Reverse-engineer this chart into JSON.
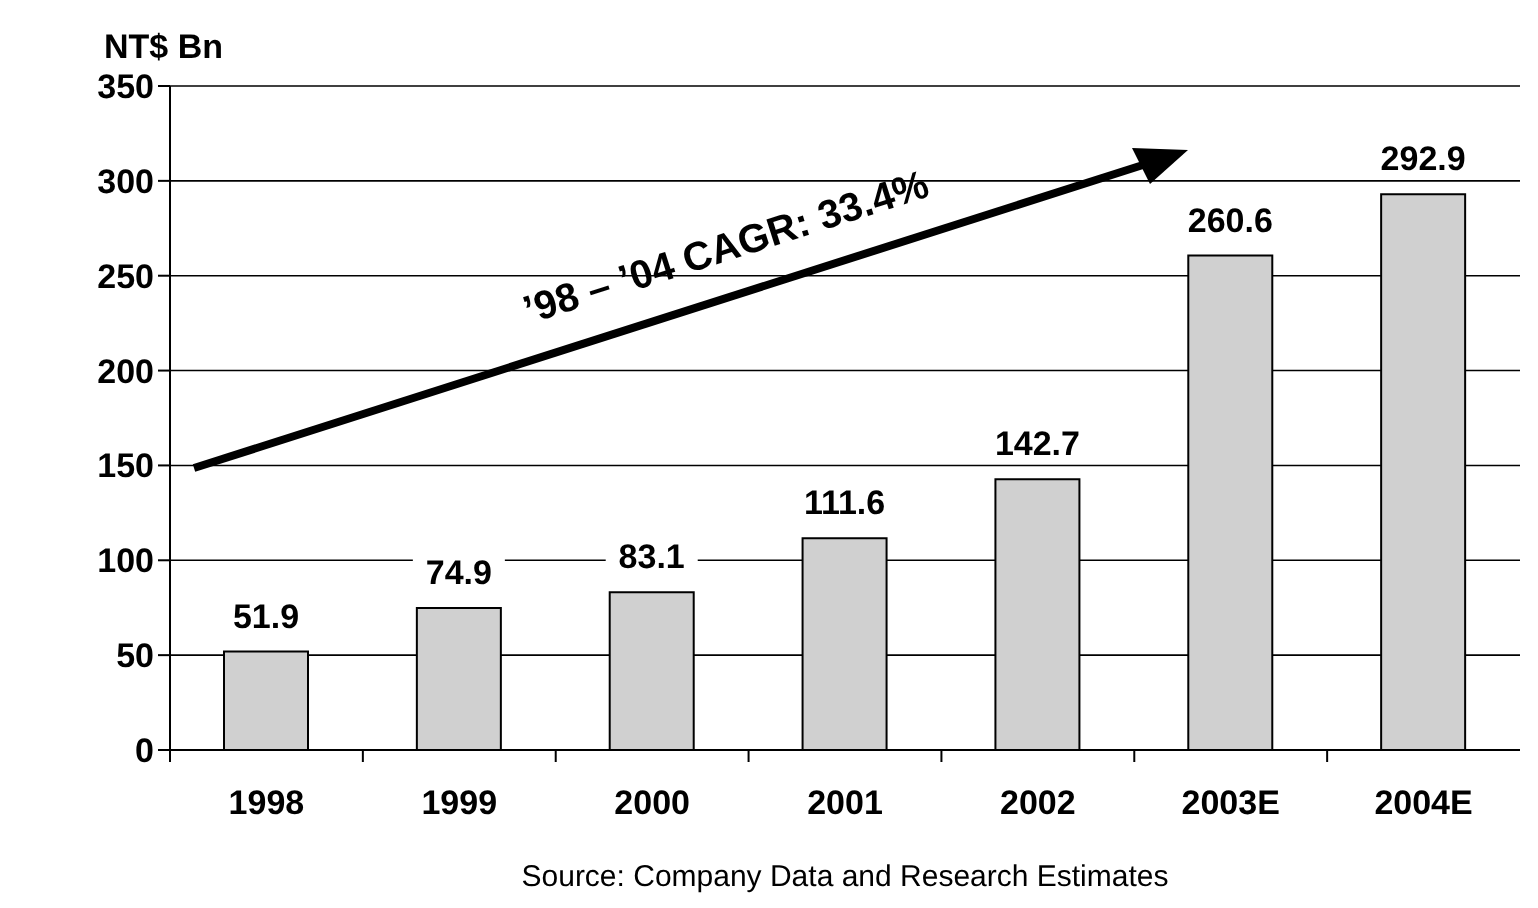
{
  "chart_data": {
    "type": "bar",
    "ylabel": "NT$ Bn",
    "categories": [
      "1998",
      "1999",
      "2000",
      "2001",
      "2002",
      "2003E",
      "2004E"
    ],
    "values": [
      51.9,
      74.9,
      83.1,
      111.6,
      142.7,
      260.6,
      292.9
    ],
    "color": "#d0d0d0",
    "ylim": [
      0,
      350
    ],
    "yticks": [
      0,
      50,
      100,
      150,
      200,
      250,
      300,
      350
    ],
    "grid": "y",
    "data_labels": true,
    "annotations": [
      "’98 – ’04 CAGR: 33.4%",
      "Source:  Company Data and Research Estimates"
    ]
  }
}
